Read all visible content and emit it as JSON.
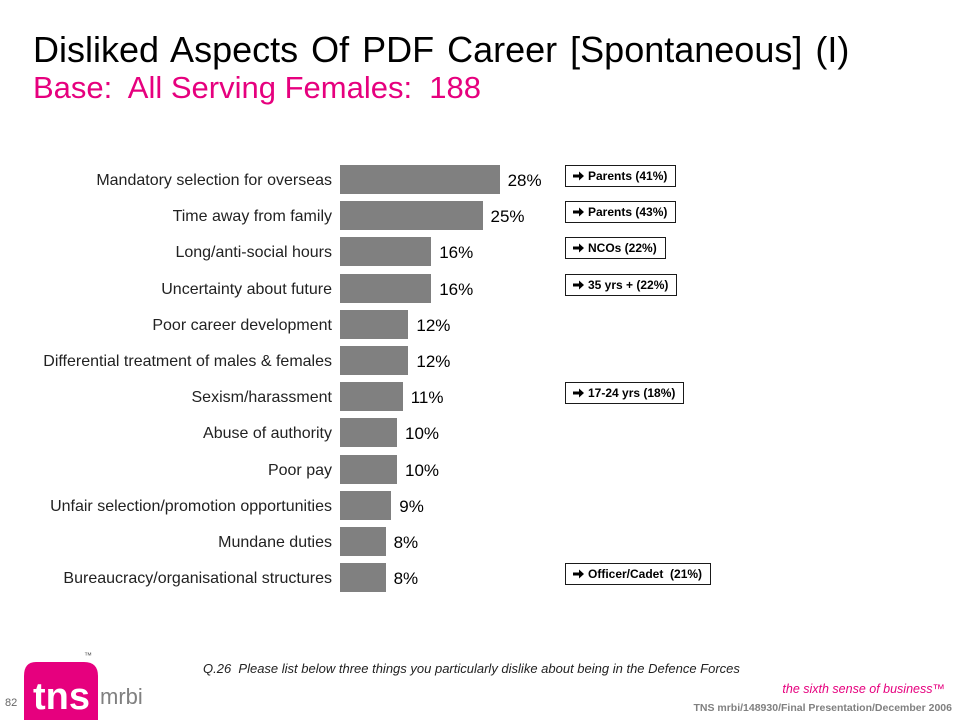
{
  "slide": {
    "title": "Disliked Aspects Of PDF Career [Spontaneous] (I)",
    "subtitle": "Base:  All Serving Females:  188",
    "question": "Q.26  Please list below three things you particularly dislike about being in the Defence Forces",
    "page_number": "82",
    "tagline": "the sixth sense of business™",
    "footer_reference": "TNS mrbi/148930/Final Presentation/December 2006",
    "logo": {
      "primary": "tns",
      "trademark": "™",
      "secondary": "mrbi"
    }
  },
  "colors": {
    "accent": "#E6007E",
    "bar": "#808080",
    "label": "#222222"
  },
  "chart_data": {
    "type": "bar",
    "orientation": "horizontal",
    "categories": [
      "Mandatory selection for overseas",
      "Time away from family",
      "Long/anti-social hours",
      "Uncertainty about future",
      "Poor career development",
      "Differential treatment of males & females",
      "Sexism/harassment",
      "Abuse of authority",
      "Poor pay",
      "Unfair selection/promotion opportunities",
      "Mundane duties",
      "Bureaucracy/organisational structures"
    ],
    "values": [
      28,
      25,
      16,
      16,
      12,
      12,
      11,
      10,
      10,
      9,
      8,
      8
    ],
    "data_labels": [
      "28%",
      "25%",
      "16%",
      "16%",
      "12%",
      "12%",
      "11%",
      "10%",
      "10%",
      "9%",
      "8%",
      "8%"
    ],
    "annotations": [
      "Parents (41%)",
      "Parents (43%)",
      "NCOs (22%)",
      "35 yrs + (22%)",
      null,
      null,
      "17-24 yrs (18%)",
      null,
      null,
      null,
      null,
      "Officer/Cadet  (21%)"
    ],
    "annotation_icon": "arrow-right-icon",
    "grid": false,
    "legend": false,
    "axes_visible": false
  }
}
